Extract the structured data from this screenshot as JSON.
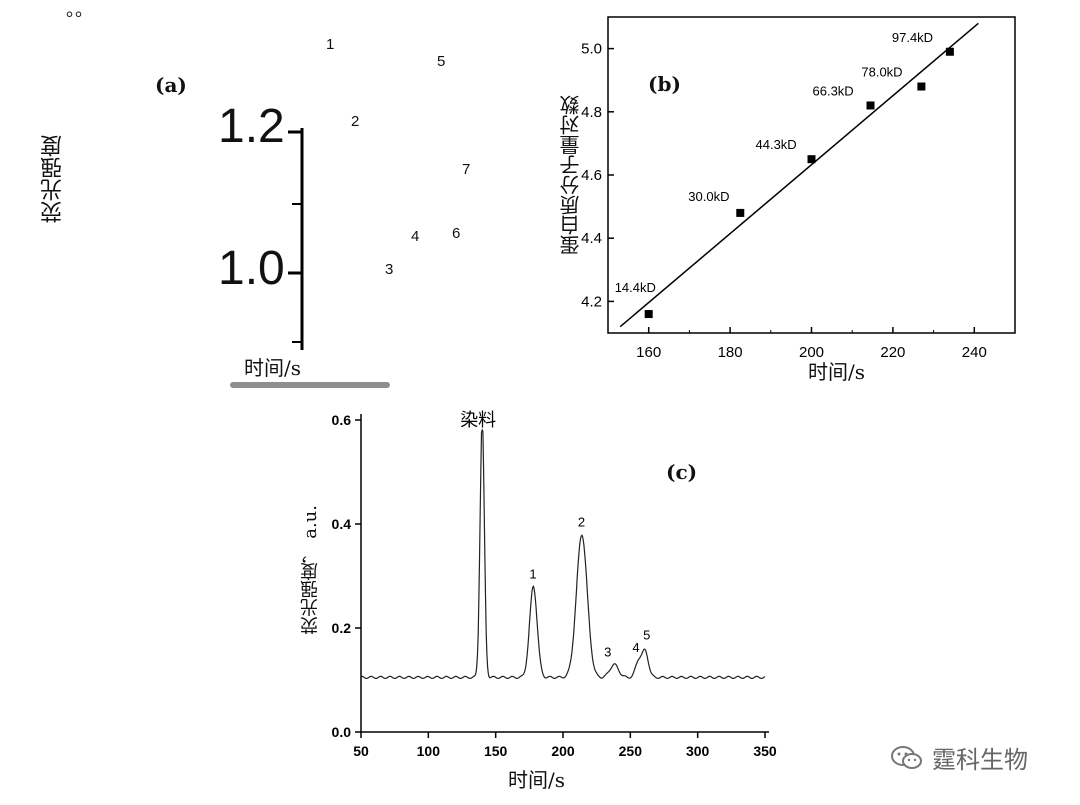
{
  "top_dots": "。。",
  "panel_a": {
    "label": "(a)",
    "ylabel": "荧光强度",
    "xlabel": "时间/s",
    "yticks": [
      "1.2",
      "1.0"
    ],
    "peak_labels": [
      "1",
      "2",
      "3",
      "4",
      "5",
      "6",
      "7"
    ]
  },
  "panel_b": {
    "label": "(b)",
    "ylabel": "蛋白质分子量对数",
    "xlabel": "时间/s"
  },
  "panel_c": {
    "label": "(c)",
    "ylabel": "荧光强度， a.u.",
    "xlabel": "时间/s",
    "dye_label": "染料"
  },
  "watermark": {
    "text": "霆科生物",
    "icon": "wechat-icon"
  },
  "chart_data": [
    {
      "type": "scatter",
      "title": "(a)",
      "ylabel": "荧光强度",
      "xlabel": "时间/s",
      "yticks": [
        1.2,
        1.0
      ],
      "annotations": [
        "1",
        "2",
        "3",
        "4",
        "5",
        "6",
        "7"
      ]
    },
    {
      "type": "scatter",
      "title": "(b)",
      "xlabel": "时间/s",
      "ylabel": "蛋白质分子量对数",
      "xlim": [
        150,
        250
      ],
      "ylim": [
        4.1,
        5.1
      ],
      "xticks": [
        160,
        180,
        200,
        220,
        240
      ],
      "yticks": [
        4.2,
        4.4,
        4.6,
        4.8,
        5.0
      ],
      "points": [
        {
          "x": 160,
          "y": 4.16,
          "label": "14.4kD"
        },
        {
          "x": 182.5,
          "y": 4.48,
          "label": "30.0kD"
        },
        {
          "x": 200,
          "y": 4.65,
          "label": "44.3kD"
        },
        {
          "x": 214.5,
          "y": 4.82,
          "label": "66.3kD"
        },
        {
          "x": 227,
          "y": 4.88,
          "label": "78.0kD"
        },
        {
          "x": 234,
          "y": 4.99,
          "label": "97.4kD"
        }
      ],
      "fit_line": [
        [
          153,
          4.12
        ],
        [
          241,
          5.08
        ]
      ]
    },
    {
      "type": "line",
      "title": "(c)",
      "xlabel": "时间/s",
      "ylabel": "荧光强度， a.u.",
      "xlim": [
        50,
        350
      ],
      "ylim": [
        0,
        0.6
      ],
      "xticks": [
        50,
        100,
        150,
        200,
        250,
        300,
        350
      ],
      "yticks": [
        0.0,
        0.2,
        0.4,
        0.6
      ],
      "baseline": 0.105,
      "peaks": [
        {
          "x": 140,
          "height": 0.6,
          "label": "染料"
        },
        {
          "x": 178,
          "height": 0.28,
          "label": "1"
        },
        {
          "x": 214,
          "height": 0.38,
          "label": "2"
        },
        {
          "x": 238,
          "height": 0.13,
          "label": "3"
        },
        {
          "x": 256,
          "height": 0.135,
          "label": "4"
        },
        {
          "x": 261,
          "height": 0.155,
          "label": "5"
        }
      ]
    }
  ]
}
